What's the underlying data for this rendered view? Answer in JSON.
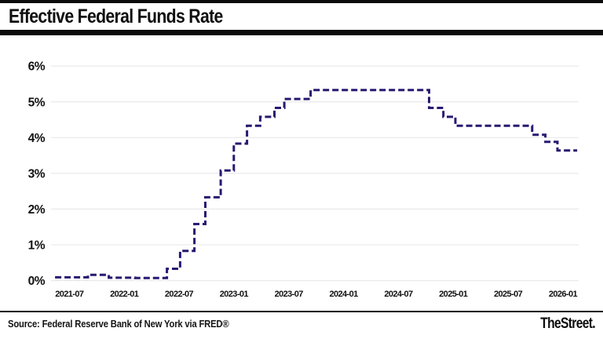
{
  "header": {
    "title": "Effective Federal Funds Rate"
  },
  "footer": {
    "source": "Source: Federal Reserve Bank of New York via FRED®",
    "brand": "TheStreet."
  },
  "colors": {
    "line": "#271970",
    "grid": "#e9e9e9",
    "bar": "#0c0c0c",
    "text": "#111111",
    "background": "#ffffff"
  },
  "chart_data": {
    "type": "line",
    "subtype": "step-after",
    "dashed": true,
    "title": "Effective Federal Funds Rate",
    "xlabel": "",
    "ylabel": "",
    "grid": "horizontal-only",
    "legend": "none",
    "y_tick_labels": [
      "0%",
      "1%",
      "2%",
      "3%",
      "4%",
      "5%",
      "6%"
    ],
    "y_tick_values": [
      0,
      1,
      2,
      3,
      4,
      5,
      6
    ],
    "ylim": [
      0,
      6.4
    ],
    "x_tick_labels": [
      "2021-07",
      "2022-01",
      "2022-07",
      "2023-01",
      "2023-07",
      "2024-01",
      "2024-07",
      "2025-01",
      "2025-07",
      "2026-01"
    ],
    "x_tick_years": [
      2021.5,
      2022.0,
      2022.5,
      2023.0,
      2023.5,
      2024.0,
      2024.5,
      2025.0,
      2025.5,
      2026.0
    ],
    "xlim": [
      2021.33,
      2026.29
    ],
    "series": [
      {
        "name": "Effective Federal Funds Rate (%)",
        "color": "#271970",
        "points": [
          {
            "x": 2021.37,
            "y": 0.09
          },
          {
            "x": 2021.67,
            "y": 0.16
          },
          {
            "x": 2021.86,
            "y": 0.08
          },
          {
            "x": 2022.1,
            "y": 0.07
          },
          {
            "x": 2022.39,
            "y": 0.33
          },
          {
            "x": 2022.51,
            "y": 0.83
          },
          {
            "x": 2022.64,
            "y": 1.58
          },
          {
            "x": 2022.74,
            "y": 2.33
          },
          {
            "x": 2022.88,
            "y": 3.08
          },
          {
            "x": 2023.0,
            "y": 3.83
          },
          {
            "x": 2023.12,
            "y": 4.33
          },
          {
            "x": 2023.24,
            "y": 4.58
          },
          {
            "x": 2023.37,
            "y": 4.83
          },
          {
            "x": 2023.46,
            "y": 5.08
          },
          {
            "x": 2023.7,
            "y": 5.33
          },
          {
            "x": 2024.78,
            "y": 4.83
          },
          {
            "x": 2024.91,
            "y": 4.58
          },
          {
            "x": 2025.02,
            "y": 4.33
          },
          {
            "x": 2025.72,
            "y": 4.08
          },
          {
            "x": 2025.84,
            "y": 3.88
          },
          {
            "x": 2025.95,
            "y": 3.64
          },
          {
            "x": 2026.13,
            "y": 3.64
          }
        ]
      }
    ]
  }
}
